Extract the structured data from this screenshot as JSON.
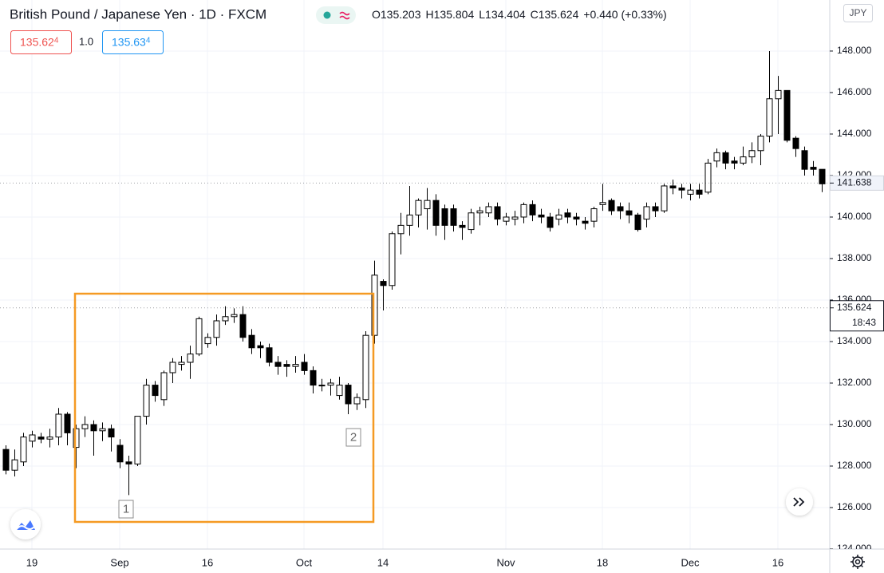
{
  "chart_data": {
    "type": "candlestick",
    "title": "British Pound / Japanese Yen · 1D · FXCM",
    "ohlc_header": [
      {
        "label": "O",
        "value": "135.203"
      },
      {
        "label": "H",
        "value": "135.804"
      },
      {
        "label": "L",
        "value": "134.404"
      },
      {
        "label": "C",
        "value": "135.624"
      }
    ],
    "change": "+0.440 (+0.33%)",
    "sell_price": {
      "price": "135.62",
      "pip": "4"
    },
    "spread": "1.0",
    "buy_price": {
      "price": "135.63",
      "pip": "4"
    },
    "currency": "JPY",
    "drawing_labels": [
      "1",
      "2"
    ],
    "up_color": "#ffffff",
    "down_color": "#000000",
    "categories": [
      null,
      null,
      null,
      "19",
      null,
      null,
      null,
      null,
      null,
      null,
      null,
      null,
      null,
      "Sep",
      null,
      null,
      null,
      null,
      null,
      null,
      null,
      null,
      null,
      "16",
      null,
      null,
      null,
      null,
      null,
      null,
      null,
      null,
      null,
      null,
      "Oct",
      null,
      null,
      null,
      null,
      null,
      null,
      null,
      null,
      "14",
      null,
      null,
      null,
      null,
      null,
      null,
      null,
      null,
      null,
      null,
      null,
      null,
      null,
      "Nov",
      null,
      null,
      null,
      null,
      null,
      null,
      null,
      null,
      null,
      null,
      "18",
      null,
      null,
      null,
      null,
      null,
      null,
      null,
      null,
      null,
      "Dec",
      null,
      null,
      null,
      null,
      null,
      null,
      null,
      null,
      null,
      "16",
      null,
      null,
      null,
      null,
      null
    ],
    "open": [
      128.8,
      127.8,
      128.2,
      129.2,
      129.4,
      129.3,
      129.4,
      130.5,
      128.9,
      129.8,
      130.0,
      129.7,
      129.8,
      129.0,
      128.2,
      128.1,
      130.4,
      131.9,
      131.2,
      132.5,
      132.9,
      133.0,
      133.4,
      133.9,
      134.2,
      135.0,
      135.2,
      135.3,
      134.3,
      133.8,
      133.7,
      133.0,
      132.9,
      132.8,
      133.0,
      132.6,
      131.9,
      131.9,
      131.4,
      131.9,
      131.0,
      131.2,
      134.3,
      136.9,
      136.7,
      139.2,
      139.6,
      140.1,
      140.4,
      140.8,
      140.4,
      140.4,
      139.6,
      139.4,
      140.2,
      140.2,
      140.5,
      139.8,
      139.9,
      140.0,
      140.6,
      140.1,
      140.0,
      139.9,
      140.2,
      140.0,
      139.8,
      139.8,
      140.6,
      140.8,
      140.5,
      140.3,
      140.1,
      139.9,
      140.5,
      140.3,
      141.5,
      141.4,
      141.1,
      141.3,
      141.2,
      142.7,
      143.1,
      142.7,
      142.6,
      142.9,
      143.2,
      143.9,
      145.7,
      146.1,
      143.8,
      143.2,
      142.4,
      142.3
    ],
    "high": [
      129.0,
      128.8,
      129.6,
      129.7,
      129.6,
      129.8,
      130.8,
      130.6,
      130.0,
      130.4,
      130.2,
      130.1,
      130.0,
      129.3,
      128.5,
      130.4,
      132.2,
      132.1,
      132.6,
      133.2,
      133.3,
      133.8,
      135.2,
      134.4,
      135.3,
      135.7,
      135.6,
      135.7,
      134.6,
      134.0,
      133.9,
      133.3,
      133.1,
      133.3,
      133.4,
      132.8,
      132.2,
      132.2,
      132.3,
      132.0,
      131.5,
      134.5,
      137.9,
      137.0,
      139.3,
      140.2,
      141.5,
      140.9,
      141.4,
      141.1,
      140.6,
      140.6,
      139.8,
      140.4,
      140.5,
      140.7,
      140.7,
      140.2,
      140.3,
      140.7,
      140.8,
      140.4,
      140.2,
      140.4,
      140.4,
      140.2,
      140.0,
      140.5,
      141.6,
      140.9,
      140.7,
      140.7,
      140.2,
      140.7,
      140.7,
      141.6,
      141.8,
      141.6,
      141.6,
      141.6,
      142.8,
      143.3,
      143.2,
      142.9,
      143.4,
      143.6,
      144.0,
      148.0,
      146.8,
      146.1,
      143.9,
      143.4,
      142.7,
      142.3
    ],
    "low": [
      127.6,
      127.5,
      128.0,
      128.9,
      129.1,
      128.9,
      129.0,
      129.0,
      127.9,
      129.4,
      128.5,
      129.2,
      128.7,
      127.9,
      126.6,
      128.0,
      130.0,
      131.1,
      130.9,
      132.0,
      132.6,
      132.2,
      133.3,
      133.7,
      133.8,
      134.8,
      134.9,
      134.0,
      133.4,
      133.2,
      132.8,
      132.4,
      132.3,
      132.5,
      132.4,
      131.5,
      131.6,
      131.4,
      131.2,
      130.5,
      130.7,
      130.8,
      133.9,
      135.5,
      136.5,
      138.2,
      139.1,
      139.5,
      139.4,
      139.1,
      138.9,
      139.3,
      138.9,
      139.2,
      139.6,
      140.0,
      139.6,
      139.6,
      139.6,
      139.7,
      139.8,
      139.7,
      139.3,
      139.6,
      139.7,
      139.6,
      139.4,
      139.5,
      140.3,
      140.1,
      139.9,
      139.7,
      139.3,
      139.5,
      140.0,
      140.2,
      141.1,
      140.9,
      140.8,
      140.9,
      141.1,
      142.4,
      142.3,
      142.3,
      142.5,
      142.6,
      142.5,
      143.6,
      144.0,
      143.6,
      142.9,
      142.0,
      142.0,
      141.2
    ],
    "close": [
      127.8,
      128.3,
      129.4,
      129.5,
      129.3,
      129.4,
      130.5,
      129.6,
      129.8,
      130.0,
      129.7,
      129.8,
      129.4,
      128.2,
      128.1,
      130.4,
      131.9,
      131.4,
      132.5,
      133.0,
      133.0,
      133.4,
      135.1,
      134.2,
      135.0,
      135.2,
      135.3,
      134.2,
      133.7,
      133.7,
      133.0,
      132.8,
      132.8,
      132.9,
      132.6,
      131.9,
      131.9,
      132.0,
      131.9,
      131.0,
      131.3,
      134.3,
      137.2,
      136.7,
      139.2,
      139.6,
      140.1,
      140.8,
      140.8,
      139.6,
      139.6,
      139.6,
      139.5,
      140.2,
      140.3,
      140.5,
      139.9,
      140.0,
      140.0,
      140.6,
      140.1,
      140.0,
      139.5,
      140.1,
      140.0,
      139.9,
      139.7,
      140.4,
      140.7,
      140.3,
      140.3,
      140.1,
      139.4,
      140.5,
      140.3,
      141.5,
      141.4,
      141.3,
      141.3,
      141.1,
      142.6,
      143.1,
      142.6,
      142.6,
      142.9,
      143.2,
      143.9,
      145.7,
      146.1,
      143.7,
      143.3,
      142.3,
      142.3,
      141.6
    ],
    "ylim": [
      124,
      150.46
    ],
    "yticks": [
      {
        "value": 124,
        "label": "124.000"
      },
      {
        "value": 126,
        "label": "126.000"
      },
      {
        "value": 128,
        "label": "128.000"
      },
      {
        "value": 130,
        "label": "130.000"
      },
      {
        "value": 132,
        "label": "132.000"
      },
      {
        "value": 134,
        "label": "134.000"
      },
      {
        "value": 136,
        "label": "136.000"
      },
      {
        "value": 138,
        "label": "138.000"
      },
      {
        "value": 140,
        "label": "140.000"
      },
      {
        "value": 142,
        "label": "142.000"
      },
      {
        "value": 144,
        "label": "144.000"
      },
      {
        "value": 146,
        "label": "146.000"
      },
      {
        "value": 148,
        "label": "148.000"
      }
    ],
    "price_labels": [
      {
        "value": 141.638,
        "label": "141.638"
      },
      {
        "value": 135.624,
        "label": "135.624",
        "time": "18:43"
      }
    ],
    "grid": true
  }
}
